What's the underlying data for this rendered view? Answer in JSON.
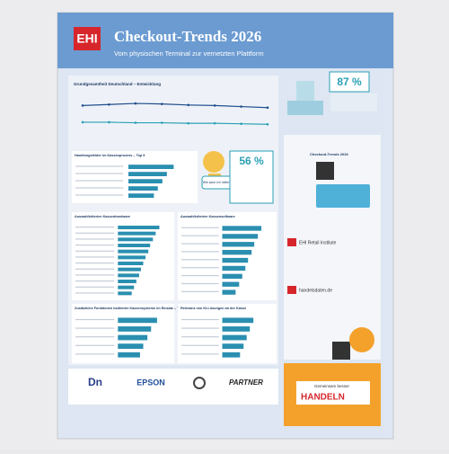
{
  "header": {
    "logo": "EHI",
    "title": "Checkout-Trends 2026",
    "subtitle": "Vom physischen Terminal zur vernetzten Plattform"
  },
  "trend": {
    "title": "Grundgesamtheit Deutschland – Entwicklung",
    "ylim": [
      0,
      100
    ],
    "series": [
      {
        "color": "#1f4e8c",
        "values": [
          70,
          72,
          74,
          73,
          71,
          70,
          68,
          66
        ]
      },
      {
        "color": "#2aa0b5",
        "values": [
          38,
          38,
          37,
          37,
          36,
          36,
          35,
          34
        ]
      }
    ]
  },
  "stat1": {
    "value": "87 %"
  },
  "stat2": {
    "value": "56 %",
    "chat": "Wie kann ich helfen?"
  },
  "panels": [
    {
      "title": "Handlungsfelder im Kassenprozess – Top 5",
      "values": [
        80,
        68,
        60,
        52,
        45
      ]
    },
    {
      "title": "Auswahlkriterien Kassenhardware",
      "values": [
        90,
        82,
        76,
        70,
        66,
        60,
        55,
        50,
        46,
        40,
        35,
        30
      ]
    },
    {
      "title": "Auswahlkriterien Kassensoftware",
      "values": [
        88,
        80,
        72,
        66,
        58,
        52,
        45,
        38,
        30
      ]
    },
    {
      "title": "Zusätzliche Funktionen bedienter Kassensysteme im Einsatz – Top 5",
      "values": [
        85,
        72,
        64,
        55,
        48
      ]
    },
    {
      "title": "Relevanz von KI-Lösungen an der Kasse",
      "values": [
        70,
        62,
        55,
        48,
        40
      ]
    }
  ],
  "sidebar": {
    "title": "Checkout-Trends 2026",
    "brand1": "EHI Retail Institute",
    "brand2": "handelsdaten.de",
    "footer1": "Gemeinsam besser",
    "footer2": "HANDELN"
  },
  "footer": {
    "logos": [
      "EPSON",
      "PARTNER"
    ]
  }
}
